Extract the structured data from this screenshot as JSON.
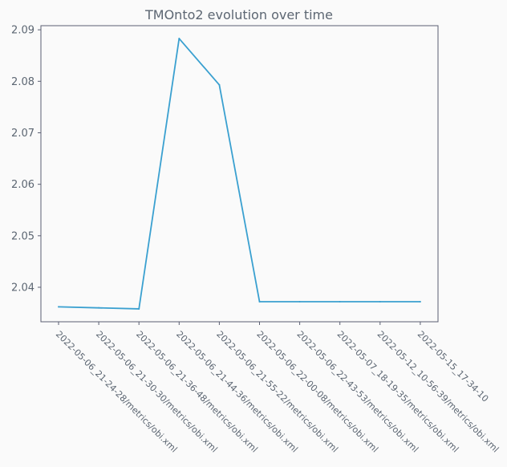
{
  "chart_data": {
    "type": "line",
    "title": "TMOnto2 evolution over time",
    "xlabel": "",
    "ylabel": "",
    "categories": [
      "2022-05-06_21-24-28/metrics/obi.xml",
      "2022-05-06_21-30-30/metrics/obi.xml",
      "2022-05-06_21-36-48/metrics/obi.xml",
      "2022-05-06_21-44-36/metrics/obi.xml",
      "2022-05-06_21-55-22/metrics/obi.xml",
      "2022-05-06_22-00-08/metrics/obi.xml",
      "2022-05-06_22-43-53/metrics/obi.xml",
      "2022-05-07_18-19-35/metrics/obi.xml",
      "2022-05-12_10-56-39/metrics/obi.xml",
      "2022-05-15_17-34-10"
    ],
    "series": [
      {
        "name": "",
        "color": "#3aa0d0",
        "values": [
          2.0362,
          2.036,
          2.0358,
          2.0883,
          2.0793,
          2.0372,
          2.0372,
          2.0372,
          2.0372,
          2.0372
        ]
      }
    ],
    "ylim": [
      2.0333,
      2.0908
    ],
    "yticks": [
      "2.04",
      "2.05",
      "2.06",
      "2.07",
      "2.08",
      "2.09"
    ],
    "ytick_values": [
      2.04,
      2.05,
      2.06,
      2.07,
      2.08,
      2.09
    ],
    "grid": false,
    "legend": "none"
  }
}
